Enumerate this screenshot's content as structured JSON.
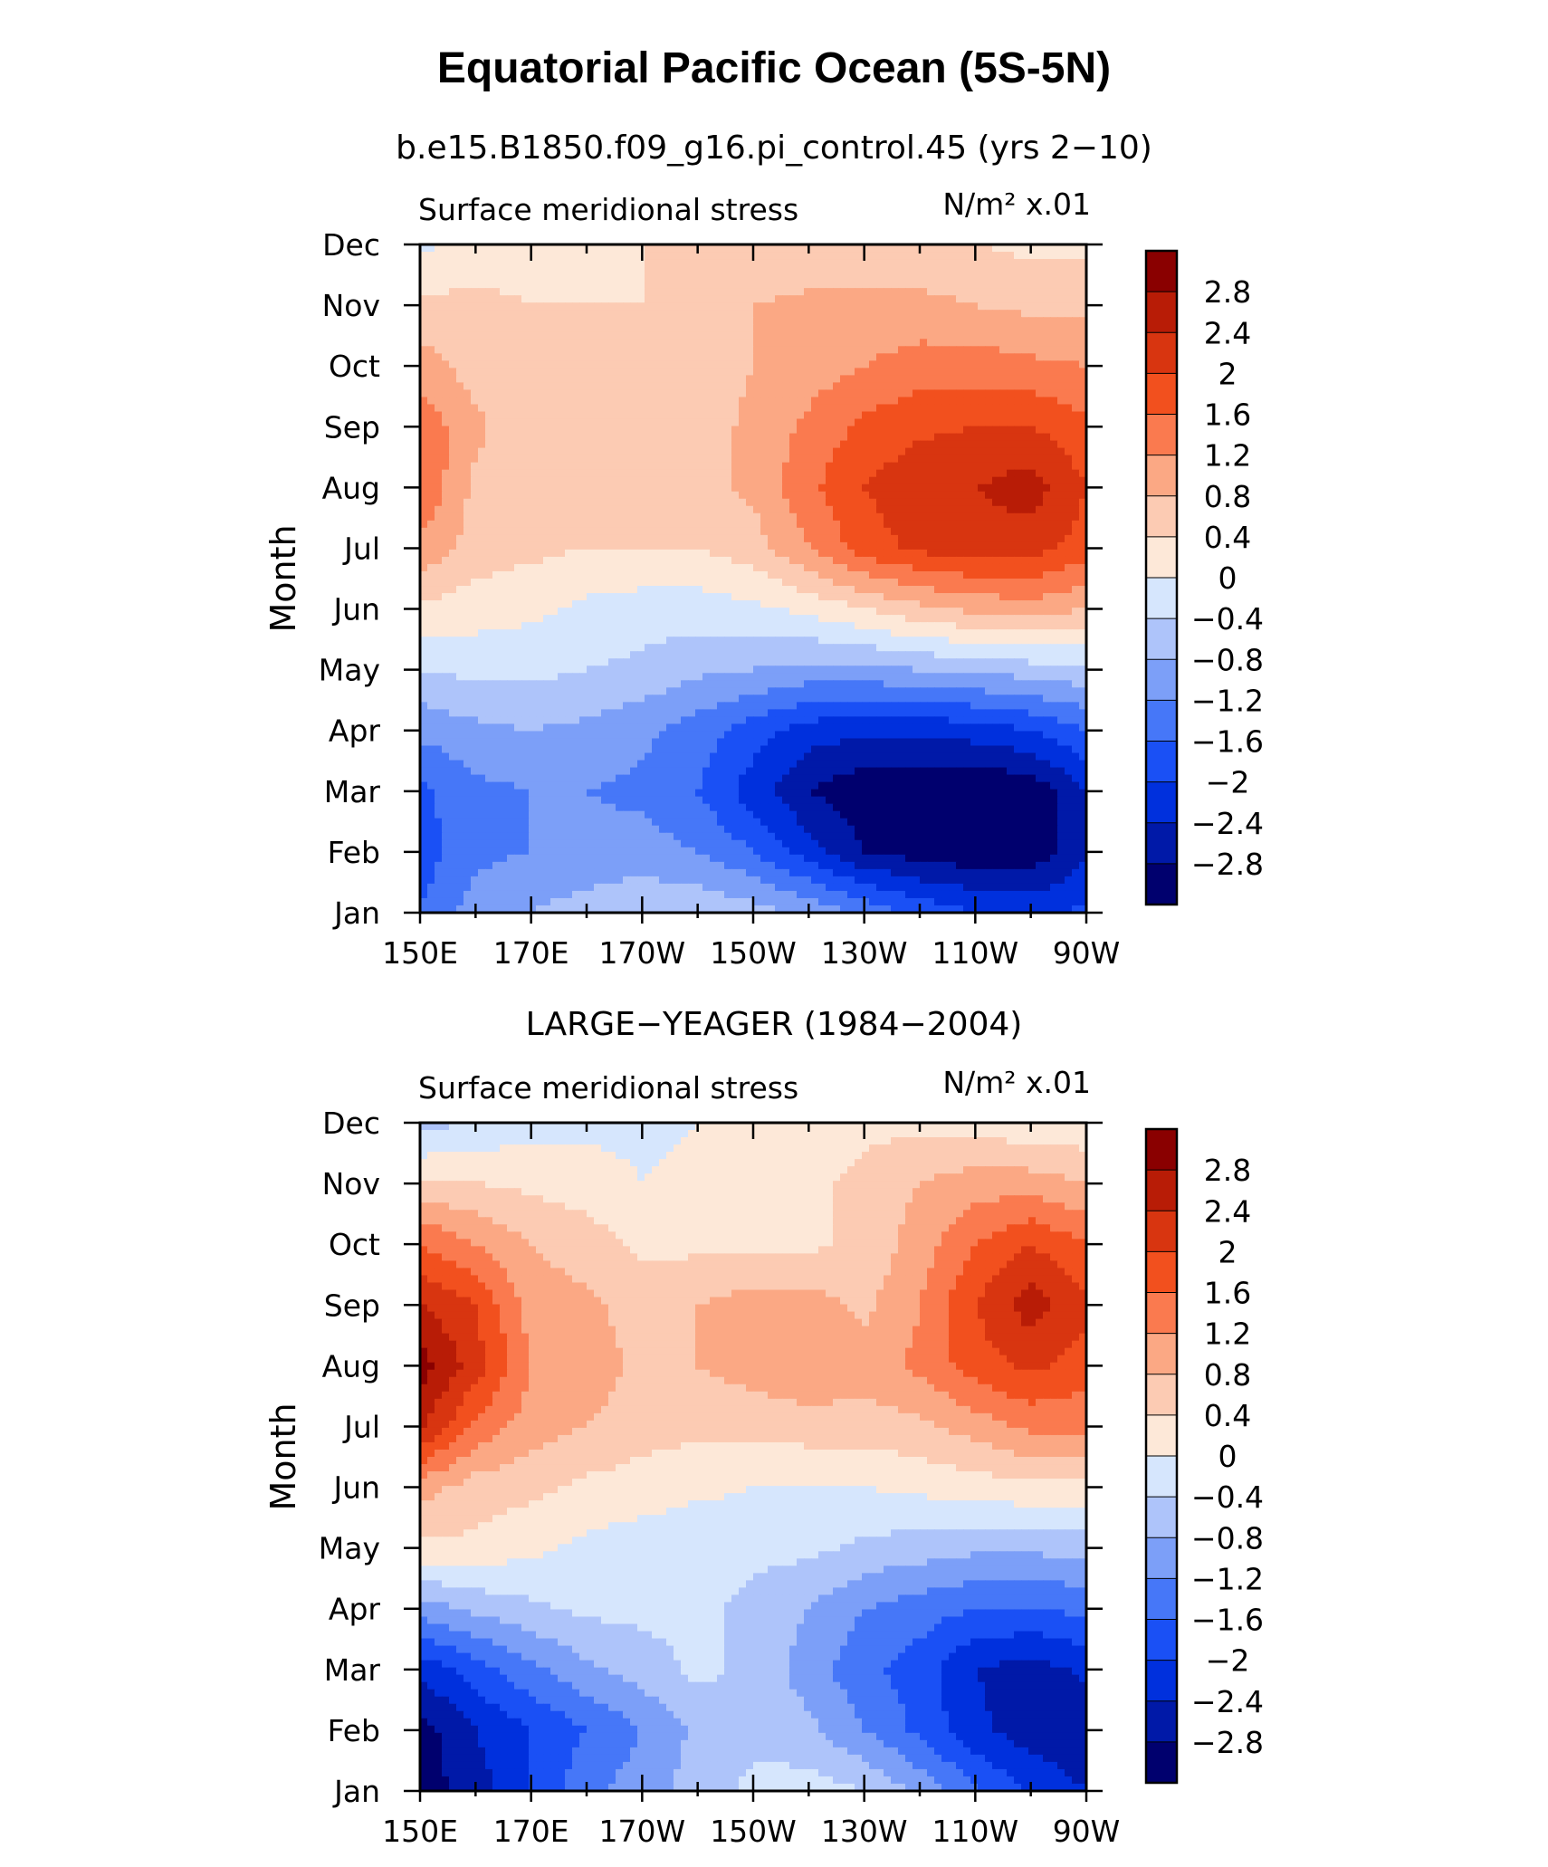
{
  "title": "Equatorial Pacific Ocean (5S-5N)",
  "colors": {
    "levels": [
      -2.8,
      -2.4,
      -2.0,
      -1.6,
      -1.2,
      -0.8,
      -0.4,
      0,
      0.4,
      0.8,
      1.2,
      1.6,
      2.0,
      2.4,
      2.8
    ],
    "palette": [
      "#00006e",
      "#0019a8",
      "#0030dd",
      "#1a50f5",
      "#4677f8",
      "#7c9ff8",
      "#aec4fa",
      "#d6e6fd",
      "#fde8d8",
      "#fccbb3",
      "#fba884",
      "#fa7a4f",
      "#f2501e",
      "#d83510",
      "#b81c06",
      "#8a0000"
    ]
  },
  "chart_data": [
    {
      "type": "heatmap",
      "subtitle": "b.e15.B1850.f09_g16.pi_control.45 (yrs 2−10)",
      "left_label": "Surface meridional stress",
      "units": "N/m² x.01",
      "ylabel": "Month",
      "xlabel": "",
      "x_ticks": [
        "150E",
        "170E",
        "170W",
        "150W",
        "130W",
        "110W",
        "90W"
      ],
      "y_ticks": [
        "Jan",
        "Feb",
        "Mar",
        "Apr",
        "May",
        "Jun",
        "Jul",
        "Aug",
        "Sep",
        "Oct",
        "Nov",
        "Dec"
      ],
      "colorbar_labels": [
        "2.8",
        "2.4",
        "2",
        "1.6",
        "1.2",
        "0.8",
        "0.4",
        "0",
        "−0.4",
        "−0.8",
        "−1.2",
        "−1.6",
        "−2",
        "−2.4",
        "−2.8"
      ],
      "x_lon": [
        150,
        160,
        170,
        180,
        190,
        200,
        210,
        220,
        230,
        240,
        250,
        260,
        270
      ],
      "values": [
        [
          -1.6,
          -1.0,
          -0.8,
          -0.6,
          -0.5,
          -0.5,
          -0.6,
          -0.9,
          -1.3,
          -1.7,
          -2.0,
          -2.1,
          -1.9
        ],
        [
          -1.8,
          -1.3,
          -1.2,
          -1.1,
          -1.0,
          -1.2,
          -1.6,
          -2.2,
          -2.8,
          -3.0,
          -3.1,
          -3.1,
          -2.5
        ],
        [
          -1.7,
          -1.3,
          -1.2,
          -1.2,
          -1.3,
          -1.6,
          -2.2,
          -2.8,
          -3.1,
          -3.2,
          -3.2,
          -3.1,
          -2.4
        ],
        [
          -1.1,
          -0.9,
          -0.8,
          -0.9,
          -1.1,
          -1.4,
          -1.8,
          -2.2,
          -2.3,
          -2.3,
          -2.2,
          -2.0,
          -1.6
        ],
        [
          -0.4,
          -0.3,
          -0.3,
          -0.4,
          -0.5,
          -0.7,
          -0.8,
          -0.9,
          -0.9,
          -0.8,
          -0.7,
          -0.6,
          -0.5
        ],
        [
          0.3,
          0.2,
          0.1,
          -0.1,
          -0.2,
          -0.2,
          -0.1,
          0.1,
          0.4,
          0.7,
          0.9,
          1.0,
          0.8
        ],
        [
          1.1,
          0.6,
          0.5,
          0.4,
          0.4,
          0.4,
          0.6,
          1.2,
          1.8,
          2.1,
          2.2,
          2.2,
          1.8
        ],
        [
          1.6,
          0.7,
          0.5,
          0.5,
          0.5,
          0.6,
          0.9,
          1.5,
          2.0,
          2.3,
          2.4,
          2.6,
          2.0
        ],
        [
          1.5,
          0.9,
          0.5,
          0.5,
          0.5,
          0.6,
          0.9,
          1.3,
          1.7,
          1.9,
          2.0,
          2.0,
          1.7
        ],
        [
          1.0,
          0.6,
          0.5,
          0.5,
          0.5,
          0.6,
          0.8,
          1.0,
          1.2,
          1.4,
          1.4,
          1.3,
          1.2
        ],
        [
          0.5,
          0.5,
          0.4,
          0.4,
          0.4,
          0.6,
          0.8,
          0.9,
          0.9,
          0.9,
          0.8,
          0.7,
          0.7
        ],
        [
          -0.1,
          0.2,
          0.2,
          0.3,
          0.4,
          0.5,
          0.5,
          0.5,
          0.5,
          0.5,
          0.4,
          0.3,
          0.3
        ]
      ]
    },
    {
      "type": "heatmap",
      "subtitle": "LARGE−YEAGER (1984−2004)",
      "left_label": "Surface meridional stress",
      "units": "N/m² x.01",
      "ylabel": "Month",
      "xlabel": "",
      "x_ticks": [
        "150E",
        "170E",
        "170W",
        "150W",
        "130W",
        "110W",
        "90W"
      ],
      "y_ticks": [
        "Jan",
        "Feb",
        "Mar",
        "Apr",
        "May",
        "Jun",
        "Jul",
        "Aug",
        "Sep",
        "Oct",
        "Nov",
        "Dec"
      ],
      "colorbar_labels": [
        "2.8",
        "2.4",
        "2",
        "1.6",
        "1.2",
        "0.8",
        "0.4",
        "0",
        "−0.4",
        "−0.8",
        "−1.2",
        "−1.6",
        "−2",
        "−2.4",
        "−2.8"
      ],
      "x_lon": [
        150,
        160,
        170,
        180,
        190,
        200,
        210,
        220,
        230,
        240,
        250,
        260,
        270
      ],
      "values": [
        [
          -3.0,
          -2.6,
          -2.0,
          -1.3,
          -1.0,
          -0.6,
          -0.3,
          -0.2,
          -0.4,
          -0.9,
          -1.5,
          -2.1,
          -2.4
        ],
        [
          -3.0,
          -2.4,
          -2.0,
          -1.6,
          -1.2,
          -0.7,
          -0.5,
          -0.7,
          -1.2,
          -1.7,
          -2.3,
          -2.6,
          -2.7
        ],
        [
          -2.3,
          -1.8,
          -1.3,
          -0.9,
          -0.6,
          -0.3,
          -0.5,
          -1.0,
          -1.5,
          -1.8,
          -2.4,
          -2.6,
          -2.3
        ],
        [
          -1.0,
          -0.7,
          -0.5,
          -0.3,
          -0.3,
          -0.3,
          -0.5,
          -0.8,
          -1.2,
          -1.4,
          -1.6,
          -1.6,
          -1.5
        ],
        [
          0.3,
          0.3,
          0.1,
          -0.1,
          -0.2,
          -0.3,
          -0.3,
          -0.3,
          -0.5,
          -0.6,
          -0.7,
          -0.7,
          -0.7
        ],
        [
          1.0,
          0.6,
          0.5,
          0.3,
          0.2,
          0.1,
          0.0,
          0.0,
          0.0,
          0.1,
          0.2,
          0.3,
          0.3
        ],
        [
          2.5,
          1.5,
          1.0,
          0.8,
          0.6,
          0.5,
          0.5,
          0.6,
          0.6,
          0.7,
          1.0,
          1.3,
          1.3
        ],
        [
          3.0,
          2.2,
          1.2,
          1.0,
          0.7,
          0.8,
          1.0,
          1.2,
          1.0,
          1.3,
          1.8,
          2.1,
          1.8
        ],
        [
          2.4,
          2.0,
          1.0,
          0.9,
          0.6,
          0.8,
          1.0,
          1.0,
          0.7,
          1.2,
          2.0,
          2.6,
          2.1
        ],
        [
          1.6,
          1.2,
          0.8,
          0.6,
          0.3,
          0.3,
          0.3,
          0.3,
          0.5,
          1.0,
          1.6,
          2.0,
          1.6
        ],
        [
          0.5,
          0.4,
          0.3,
          0.2,
          0.0,
          0.1,
          0.2,
          0.3,
          0.5,
          0.8,
          1.0,
          1.0,
          0.8
        ],
        [
          -0.6,
          -0.3,
          -0.2,
          -0.1,
          -0.1,
          0.0,
          0.2,
          0.2,
          0.3,
          0.3,
          0.2,
          0.1,
          0.1
        ]
      ]
    }
  ]
}
